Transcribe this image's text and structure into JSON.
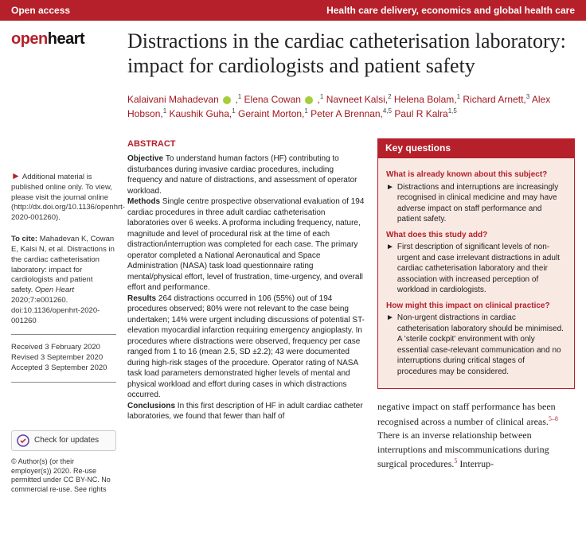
{
  "banner": {
    "left": "Open access",
    "right": "Health care delivery, economics and global health care"
  },
  "logo": {
    "open": "open",
    "heart": "heart"
  },
  "title": "Distractions in the cardiac catheterisation laboratory: impact for cardiologists and patient safety",
  "authors_html": "Kalaivani Mahadevan {orcid} ,<sup>1</sup> Elena Cowan {orcid} ,<sup>1</sup> Navneet Kalsi,<sup>2</sup> Helena Bolam,<sup>1</sup> Richard Arnett,<sup>3</sup> Alex Hobson,<sup>1</sup> Kaushik Guha,<sup>1</sup> Geraint Morton,<sup>1</sup> Peter A Brennan,<sup>4,5</sup> Paul R Kalra<sup>1,5</sup>",
  "sidebar": {
    "supplementary": "Additional material is published online only. To view, please visit the journal online (http://dx.doi.org/10.1136/openhrt-2020-001260).",
    "cite_label": "To cite:",
    "cite": "Mahadevan K, Cowan E, Kalsi N, et al. Distractions in the cardiac catheterisation laboratory: impact for cardiologists and patient safety. Open Heart 2020;7:e001260. doi:10.1136/openhrt-2020-001260",
    "received": "Received 3 February 2020",
    "revised": "Revised 3 September 2020",
    "accepted": "Accepted 3 September 2020",
    "check": "Check for updates",
    "copyright": "© Author(s) (or their employer(s)) 2020. Re-use permitted under CC BY-NC. No commercial re-use. See rights"
  },
  "abstract": {
    "heading": "ABSTRACT",
    "objective_label": "Objective",
    "objective": "To understand human factors (HF) contributing to disturbances during invasive cardiac procedures, including frequency and nature of distractions, and assessment of operator workload.",
    "methods_label": "Methods",
    "methods": "Single centre prospective observational evaluation of 194 cardiac procedures in three adult cardiac catheterisation laboratories over 6 weeks. A proforma including frequency, nature, magnitude and level of procedural risk at the time of each distraction/interruption was completed for each case. The primary operator completed a National Aeronautical and Space Administration (NASA) task load questionnaire rating mental/physical effort, level of frustration, time-urgency, and overall effort and performance.",
    "results_label": "Results",
    "results": "264 distractions occurred in 106 (55%) out of 194 procedures observed; 80% were not relevant to the case being undertaken; 14% were urgent including discussions of potential ST-elevation myocardial infarction requiring emergency angioplasty. In procedures where distractions were observed, frequency per case ranged from 1 to 16 (mean 2.5, SD ±2.2); 43 were documented during high-risk stages of the procedure. Operator rating of NASA task load parameters demonstrated higher levels of mental and physical workload and effort during cases in which distractions occurred.",
    "conclusions_label": "Conclusions",
    "conclusions": "In this first description of HF in adult cardiac catheter laboratories, we found that fewer than half of"
  },
  "keyq": {
    "heading": "Key questions",
    "q1": "What is already known about this subject?",
    "a1": "Distractions and interruptions are increasingly recognised in clinical medicine and may have adverse impact on staff performance and patient safety.",
    "q2": "What does this study add?",
    "a2": "First description of significant levels of non-urgent and case irrelevant distractions in adult cardiac catheterisation laboratory and their association with increased perception of workload in cardiologists.",
    "q3": "How might this impact on clinical practice?",
    "a3": "Non-urgent distractions in cardiac catheterisation laboratory should be minimised. A 'sterile cockpit' environment with only essential case-relevant communication and no interruptions during critical stages of procedures may be considered."
  },
  "intro": {
    "p1_a": "negative impact on staff performance has been recognised across a number of clinical areas.",
    "sup1": "5–8",
    "p1_b": " There is an inverse relationship between interruptions and miscommunications during surgical procedures.",
    "sup2": "5",
    "p1_c": " Interrup-"
  },
  "colors": {
    "brand": "#b5202a",
    "kq_bg": "#f9e9e3"
  }
}
